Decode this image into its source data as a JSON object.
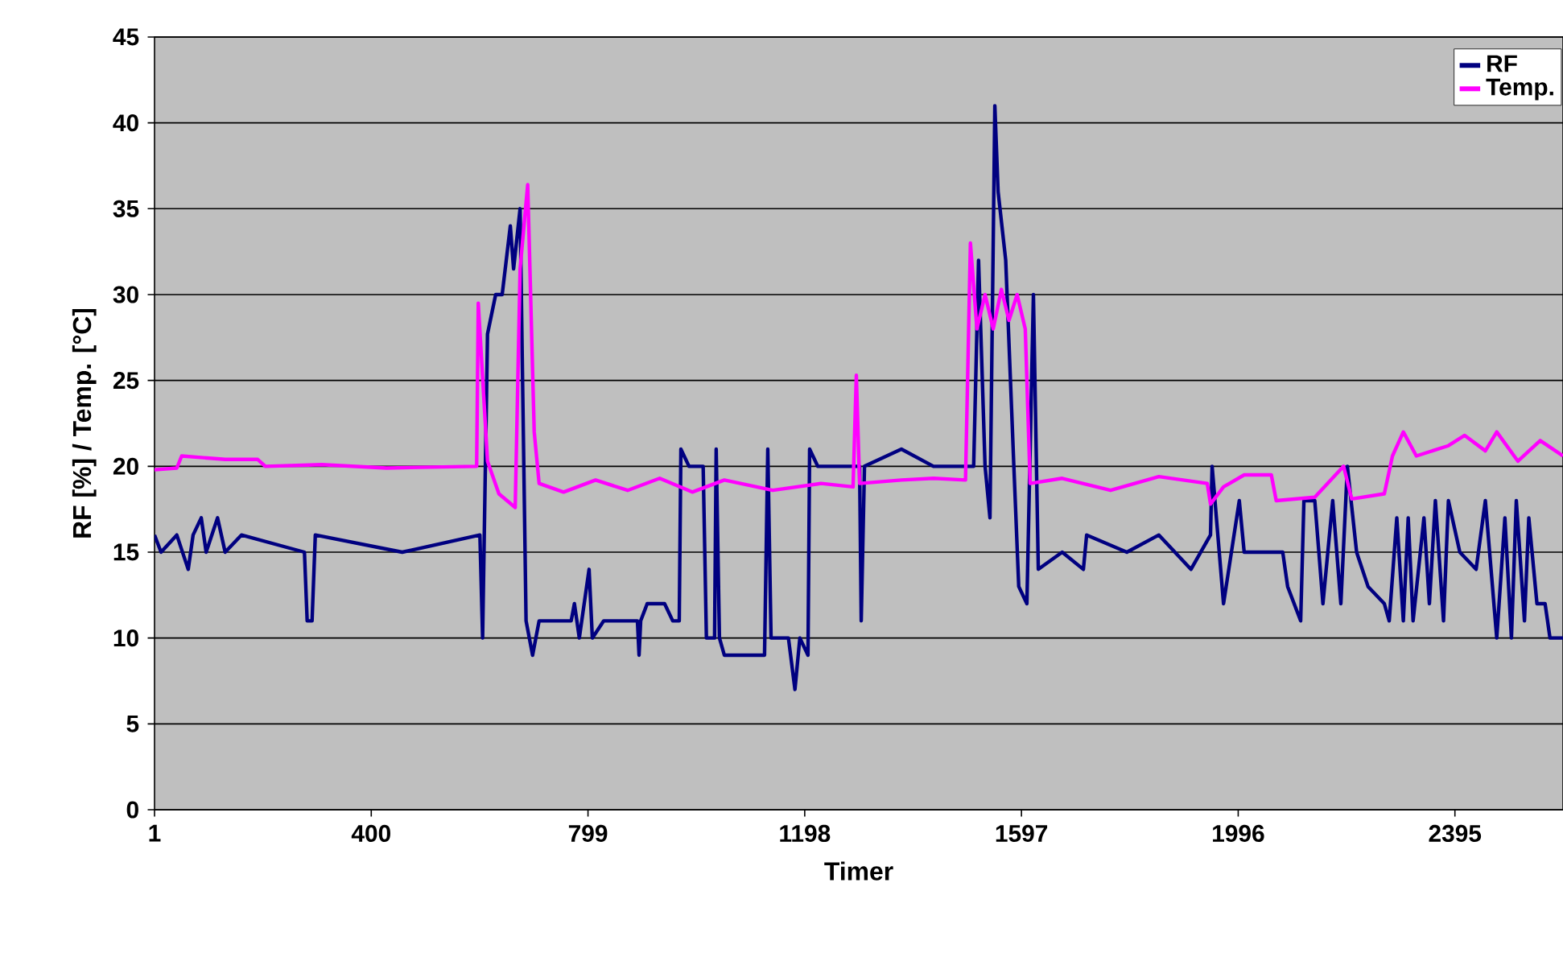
{
  "chart_data": {
    "type": "line",
    "xlabel": "Timer",
    "ylabel": "RF [%] / Temp. [°C]",
    "xlim": [
      1,
      2594
    ],
    "ylim": [
      0,
      45
    ],
    "xticks": [
      1,
      400,
      799,
      1198,
      1597,
      1996,
      2395
    ],
    "yticks": [
      0,
      5,
      10,
      15,
      20,
      25,
      30,
      35,
      40,
      45
    ],
    "grid": "y",
    "legend": "top right",
    "series": [
      {
        "name": "RF",
        "color": "#000080",
        "x": [
          1,
          13,
          42,
          63,
          72,
          87,
          96,
          117,
          131,
          161,
          277,
          282,
          291,
          297,
          457,
          600,
          605,
          614,
          629,
          641,
          656,
          662,
          674,
          685,
          697,
          709,
          768,
          774,
          783,
          801,
          807,
          828,
          890,
          893,
          896,
          908,
          940,
          955,
          967,
          970,
          985,
          1011,
          1017,
          1032,
          1035,
          1041,
          1050,
          1124,
          1130,
          1136,
          1168,
          1180,
          1189,
          1204,
          1207,
          1222,
          1299,
          1302,
          1308,
          1376,
          1435,
          1494,
          1509,
          1518,
          1530,
          1539,
          1548,
          1554,
          1568,
          1583,
          1592,
          1607,
          1619,
          1628,
          1672,
          1711,
          1717,
          1791,
          1850,
          1909,
          1945,
          1948,
          1969,
          1998,
          2007,
          2078,
          2087,
          2111,
          2117,
          2137,
          2152,
          2170,
          2185,
          2197,
          2214,
          2235,
          2265,
          2274,
          2288,
          2300,
          2309,
          2318,
          2338,
          2348,
          2359,
          2374,
          2383,
          2404,
          2434,
          2451,
          2472,
          2487,
          2499,
          2508,
          2523,
          2531,
          2546,
          2561,
          2570,
          2594
        ],
        "values": [
          16,
          15,
          16,
          14,
          16,
          17,
          15,
          17,
          15,
          16,
          15,
          11,
          11,
          16,
          15,
          16,
          10,
          27.7,
          30,
          30,
          34,
          31.5,
          35,
          11,
          9,
          11,
          11,
          12,
          10,
          14,
          10,
          11,
          11,
          9,
          11,
          12,
          12,
          11,
          11,
          21,
          20,
          20,
          10,
          10,
          21,
          10,
          9,
          9,
          21,
          10,
          10,
          7,
          10,
          9,
          21,
          20,
          20,
          11,
          20,
          21,
          20,
          20,
          20,
          32,
          20,
          17,
          41,
          36,
          32,
          20,
          13,
          12,
          30,
          14,
          15,
          14,
          16,
          15,
          16,
          14,
          16,
          20,
          12,
          18,
          15,
          15,
          13,
          11,
          18,
          18,
          12,
          18,
          12,
          20,
          15,
          13,
          12,
          11,
          17,
          11,
          17,
          11,
          17,
          12,
          18,
          11,
          18,
          15,
          14,
          18,
          10,
          17,
          10,
          18,
          11,
          17,
          12,
          12,
          10,
          10
        ]
      },
      {
        "name": "Temp.",
        "color": "#ff00ff",
        "x": [
          1,
          42,
          51,
          131,
          191,
          205,
          309,
          428,
          594,
          597,
          614,
          635,
          665,
          674,
          688,
          700,
          709,
          754,
          813,
          872,
          931,
          991,
          1050,
          1139,
          1228,
          1287,
          1293,
          1299,
          1376,
          1435,
          1494,
          1503,
          1515,
          1530,
          1545,
          1560,
          1574,
          1589,
          1604,
          1613,
          1672,
          1761,
          1850,
          1939,
          1945,
          1969,
          2007,
          2057,
          2066,
          2137,
          2190,
          2205,
          2265,
          2280,
          2300,
          2324,
          2383,
          2413,
          2451,
          2472,
          2511,
          2552,
          2594
        ],
        "values": [
          19.8,
          19.9,
          20.6,
          20.4,
          20.4,
          20,
          20.1,
          19.9,
          20,
          29.5,
          20.3,
          18.4,
          17.6,
          31.5,
          36.4,
          22,
          19,
          18.5,
          19.2,
          18.6,
          19.3,
          18.5,
          19.2,
          18.6,
          19,
          18.8,
          25.3,
          19,
          19.2,
          19.3,
          19.2,
          33,
          28,
          30,
          28,
          30.3,
          28.5,
          30,
          28,
          19,
          19.3,
          18.6,
          19.4,
          19,
          17.8,
          18.8,
          19.5,
          19.5,
          18,
          18.2,
          20,
          18.1,
          18.4,
          20.6,
          22,
          20.6,
          21.2,
          21.8,
          20.9,
          22,
          20.3,
          21.5,
          20.6
        ]
      }
    ]
  }
}
